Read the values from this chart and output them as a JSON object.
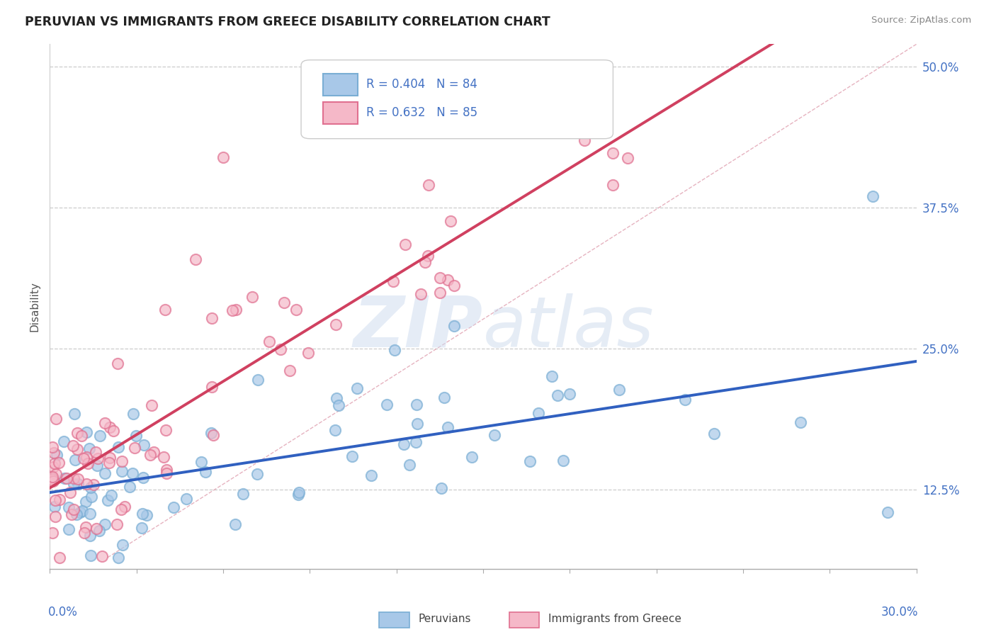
{
  "title": "PERUVIAN VS IMMIGRANTS FROM GREECE DISABILITY CORRELATION CHART",
  "source": "Source: ZipAtlas.com",
  "ylabel": "Disability",
  "xlim": [
    0.0,
    0.3
  ],
  "ylim": [
    0.055,
    0.52
  ],
  "ytick_vals": [
    0.125,
    0.25,
    0.375,
    0.5
  ],
  "ytick_labels": [
    "12.5%",
    "25.0%",
    "37.5%",
    "50.0%"
  ],
  "blue_color": "#a8c8e8",
  "blue_edge": "#7aaed4",
  "pink_color": "#f5b8c8",
  "pink_edge": "#e07090",
  "trend_blue": "#3060c0",
  "trend_pink": "#d04060",
  "ref_line_color": "#e0a0b0",
  "grid_color": "#cccccc",
  "watermark_zip": "ZIP",
  "watermark_atlas": "atlas",
  "legend_text_color": "#4472c4",
  "title_color": "#222222",
  "source_color": "#888888",
  "axis_label_color": "#555555",
  "tick_label_color": "#4472c4"
}
